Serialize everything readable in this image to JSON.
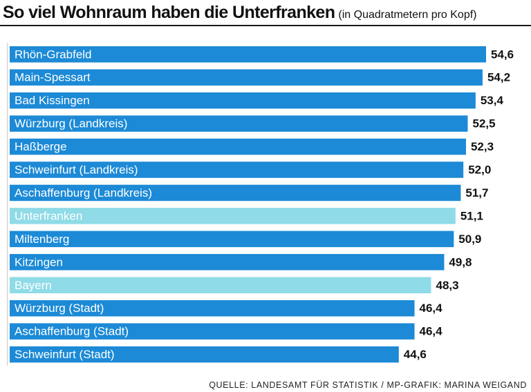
{
  "chart_data": {
    "type": "bar",
    "orientation": "horizontal",
    "title": "So viel Wohnraum haben die Unterfranken",
    "subtitle": "(in Quadratmetern pro Kopf)",
    "source": "QUELLE: LANDESAMT FÜR STATISTIK / MP-GRAFIK: MARINA WEIGAND",
    "categories": [
      "Rhön-Grabfeld",
      "Main-Spessart",
      "Bad Kissingen",
      "Würzburg (Landkreis)",
      "Haßberge",
      "Schweinfurt (Landkreis)",
      "Aschaffenburg (Landkreis)",
      "Unterfranken",
      "Miltenberg",
      "Kitzingen",
      "Bayern",
      "Würzburg (Stadt)",
      "Aschaffenburg (Stadt)",
      "Schweinfurt (Stadt)"
    ],
    "values": [
      54.6,
      54.2,
      53.4,
      52.5,
      52.3,
      52.0,
      51.7,
      51.1,
      50.9,
      49.8,
      48.3,
      46.4,
      46.4,
      44.6
    ],
    "value_labels": [
      "54,6",
      "54,2",
      "53,4",
      "52,5",
      "52,3",
      "52,0",
      "51,7",
      "51,1",
      "50,9",
      "49,8",
      "48,3",
      "46,4",
      "46,4",
      "44,6"
    ],
    "highlighted": [
      "Unterfranken",
      "Bayern"
    ],
    "colors": {
      "bar": "#1c8ad6",
      "highlight": "#8fdbe7"
    },
    "xlim": [
      0,
      54.6
    ],
    "xlabel": "",
    "ylabel": ""
  }
}
